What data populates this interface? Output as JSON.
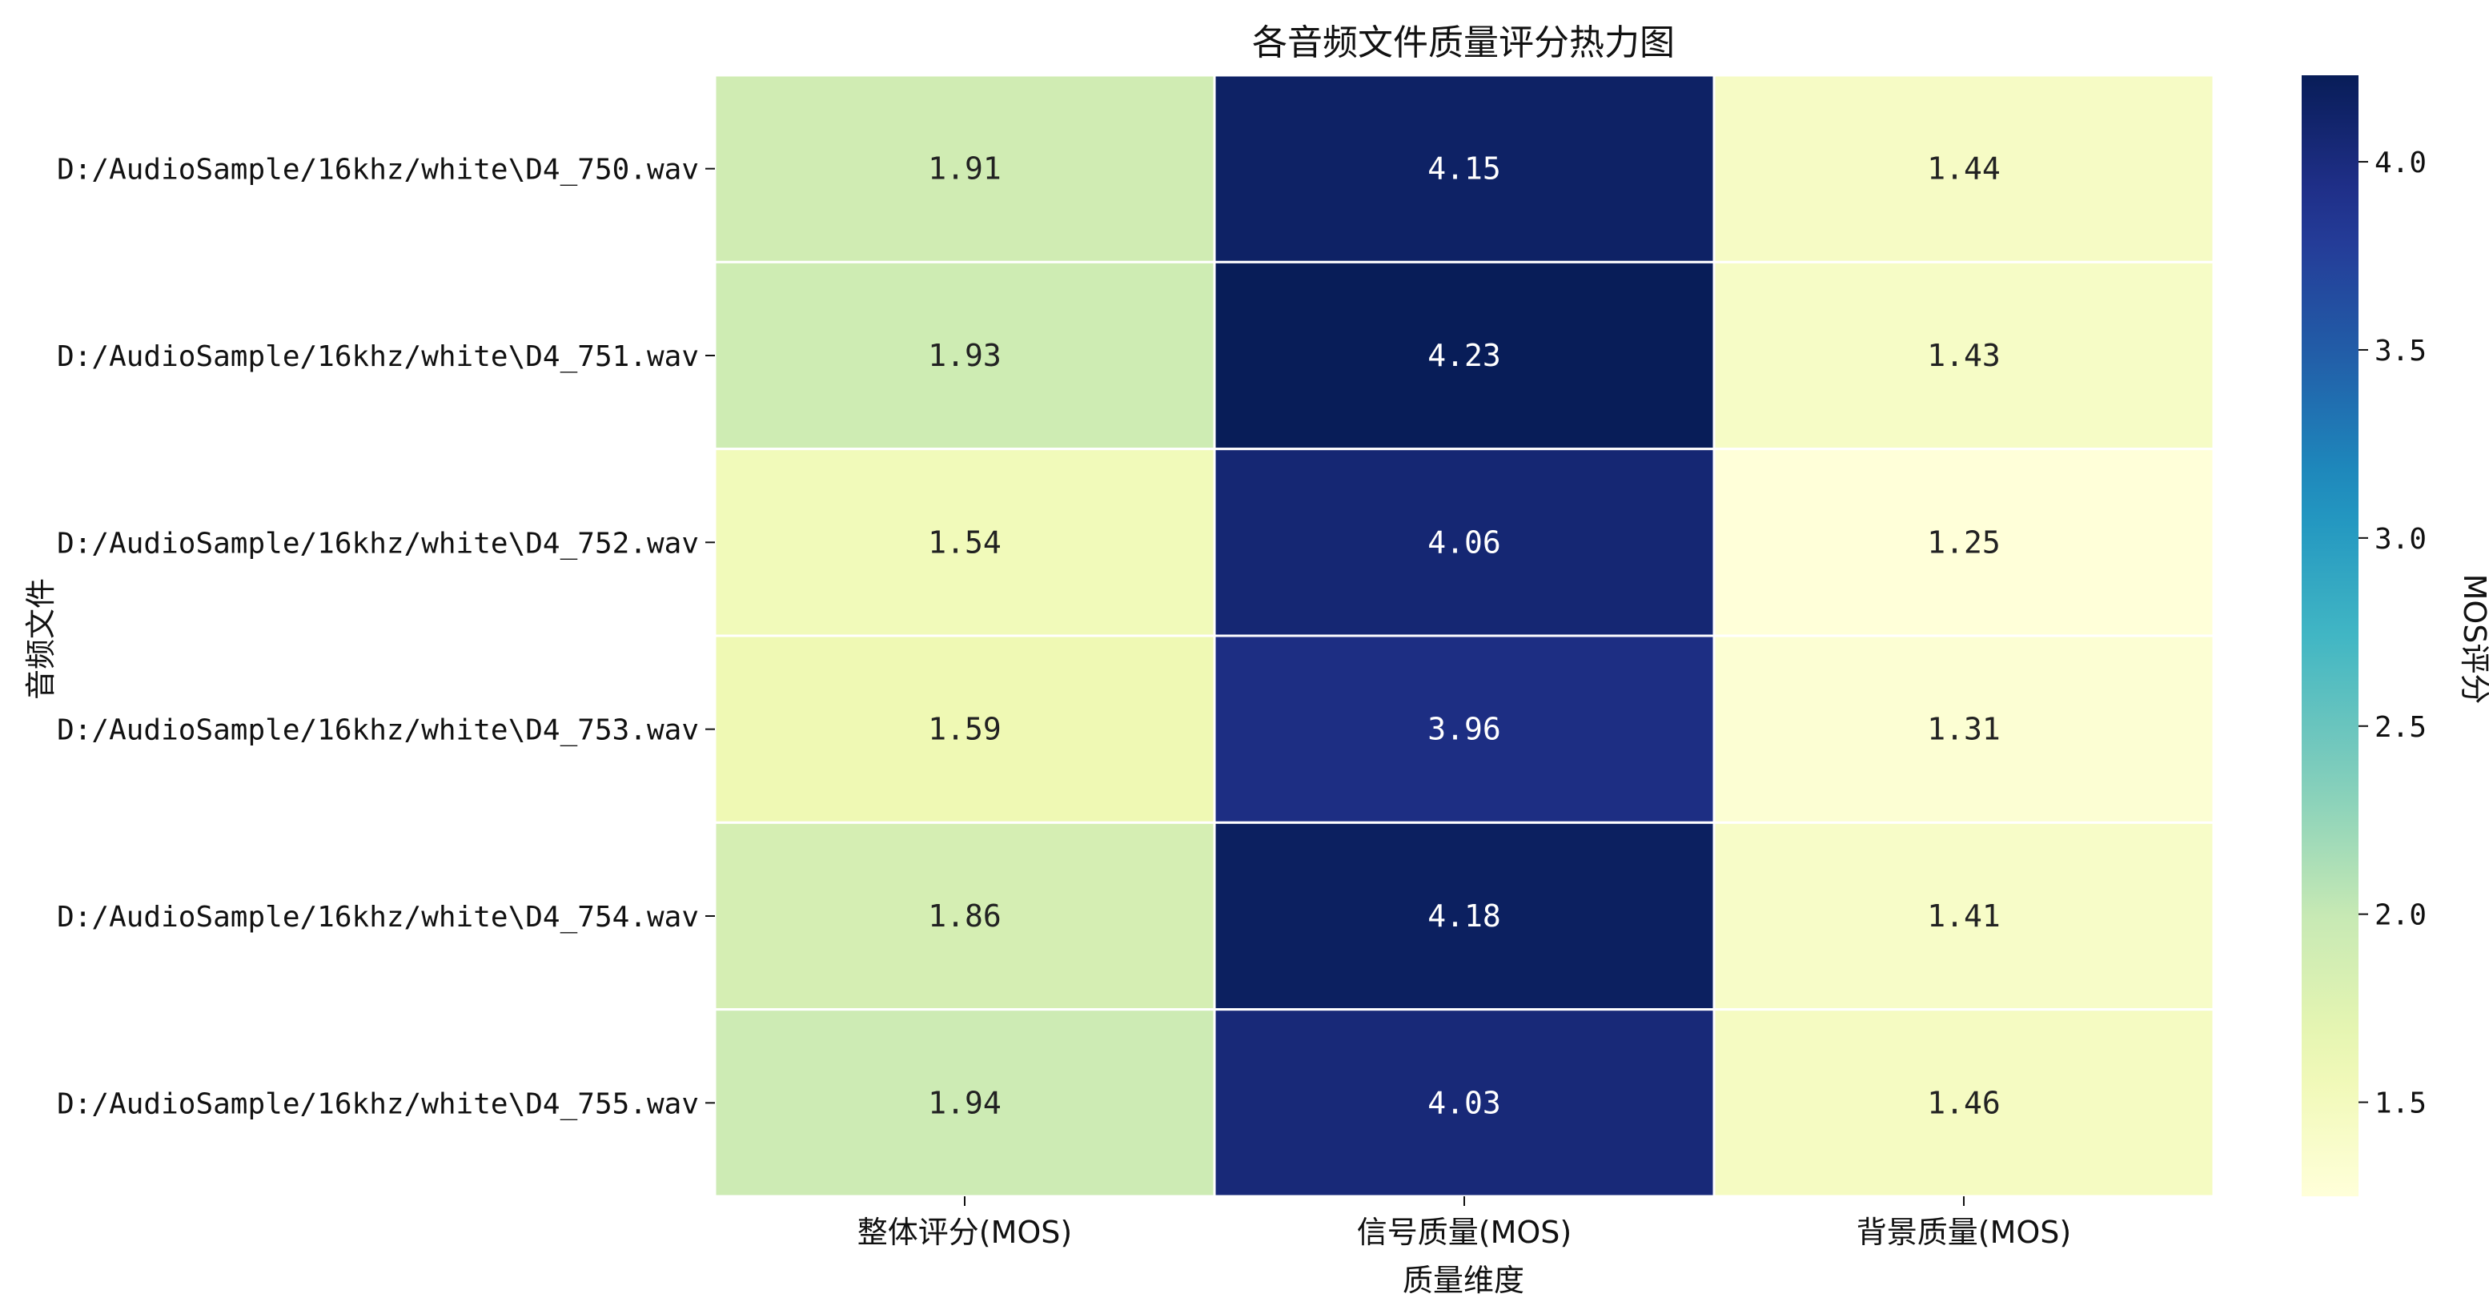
{
  "chart_data": {
    "type": "heatmap",
    "title": "各音频文件质量评分热力图",
    "xlabel": "质量维度",
    "ylabel": "音频文件",
    "colorbar_label": "MOS评分",
    "colormap": "YlGnBu",
    "columns": [
      "整体评分(MOS)",
      "信号质量(MOS)",
      "背景质量(MOS)"
    ],
    "rows": [
      "D:/AudioSample/16khz/white\\D4_750.wav",
      "D:/AudioSample/16khz/white\\D4_751.wav",
      "D:/AudioSample/16khz/white\\D4_752.wav",
      "D:/AudioSample/16khz/white\\D4_753.wav",
      "D:/AudioSample/16khz/white\\D4_754.wav",
      "D:/AudioSample/16khz/white\\D4_755.wav"
    ],
    "values": [
      [
        1.91,
        4.15,
        1.44
      ],
      [
        1.93,
        4.23,
        1.43
      ],
      [
        1.54,
        4.06,
        1.25
      ],
      [
        1.59,
        3.96,
        1.31
      ],
      [
        1.86,
        4.18,
        1.41
      ],
      [
        1.94,
        4.03,
        1.46
      ]
    ],
    "value_labels": [
      [
        "1.91",
        "4.15",
        "1.44"
      ],
      [
        "1.93",
        "4.23",
        "1.43"
      ],
      [
        "1.54",
        "4.06",
        "1.25"
      ],
      [
        "1.59",
        "3.96",
        "1.31"
      ],
      [
        "1.86",
        "4.18",
        "1.41"
      ],
      [
        "1.94",
        "4.03",
        "1.46"
      ]
    ],
    "color_range": [
      1.25,
      4.23
    ],
    "colorbar_ticks": [
      1.5,
      2.0,
      2.5,
      3.0,
      3.5,
      4.0
    ],
    "colorbar_tick_labels": [
      "1.5",
      "2.0",
      "2.5",
      "3.0",
      "3.5",
      "4.0"
    ]
  }
}
